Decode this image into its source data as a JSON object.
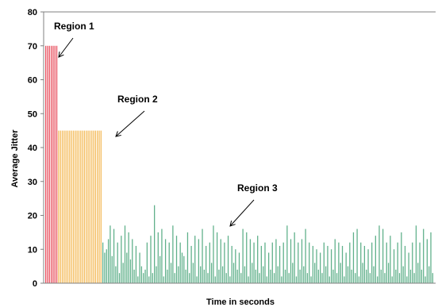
{
  "chart_data": {
    "type": "bar",
    "title": "",
    "xlabel": "Time in seconds",
    "ylabel": "Average Jitter",
    "ylim": [
      0,
      80
    ],
    "yticks": [
      "0",
      "10",
      "20",
      "30",
      "40",
      "50",
      "60",
      "70",
      "80"
    ],
    "grid": false,
    "legend": "none",
    "series": [
      {
        "values": [
          70,
          70,
          70,
          70,
          70,
          70,
          70
        ],
        "color": "#e8505f"
      },
      {
        "values": [
          45,
          45,
          45,
          45,
          45,
          45,
          45,
          45,
          45,
          45,
          45,
          45,
          45,
          45,
          45,
          45,
          45,
          45,
          45,
          45,
          45,
          45,
          45,
          45
        ],
        "color": "#f4bb5a"
      },
      {
        "values": [
          12,
          9,
          10,
          13,
          17,
          8,
          16,
          5,
          12,
          3,
          14,
          6,
          17,
          9,
          15,
          7,
          13,
          4,
          11,
          2,
          9,
          5,
          3,
          4,
          12,
          2,
          14,
          3,
          23,
          5,
          15,
          8,
          16,
          2,
          13,
          4,
          12,
          6,
          17,
          3,
          14,
          5,
          12,
          9,
          8,
          4,
          15,
          3,
          11,
          6,
          14,
          2,
          13,
          5,
          16,
          4,
          11,
          3,
          12,
          6,
          17,
          2,
          15,
          4,
          13,
          5,
          12,
          3,
          14,
          2,
          11,
          6,
          10,
          4,
          9,
          3,
          16,
          5,
          15,
          2,
          13,
          6,
          12,
          4,
          14,
          3,
          11,
          5,
          12,
          2,
          9,
          4,
          12,
          3,
          13,
          5,
          11,
          2,
          12,
          4,
          17,
          3,
          13,
          6,
          15,
          2,
          12,
          4,
          13,
          5,
          16,
          3,
          12,
          2,
          11,
          6,
          10,
          4,
          9,
          3,
          12,
          5,
          11,
          2,
          10,
          4,
          13,
          3,
          12,
          6,
          11,
          2,
          9,
          5,
          12,
          4,
          15,
          3,
          16,
          2,
          12,
          6,
          11,
          4,
          10,
          3,
          12,
          5,
          14,
          2,
          17,
          4,
          16,
          3,
          12,
          6,
          14,
          2,
          10,
          4,
          12,
          3,
          15,
          5,
          11,
          2,
          9,
          4,
          12,
          3,
          17,
          6,
          12,
          4,
          16,
          2,
          13,
          5,
          15,
          3
        ],
        "color": "#5fb08a"
      }
    ],
    "annotations": [
      {
        "text": "Region 1",
        "series": 0
      },
      {
        "text": "Region 2",
        "series": 1
      },
      {
        "text": "Region 3",
        "series": 2
      }
    ]
  }
}
